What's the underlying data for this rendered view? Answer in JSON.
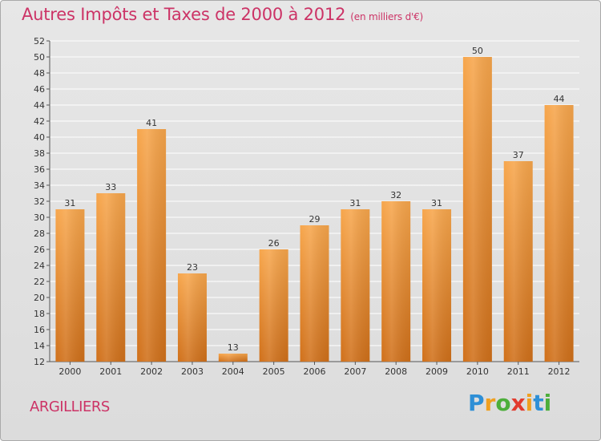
{
  "header": {
    "title": "Autres Impôts et Taxes de 2000 à 2012",
    "unit": "(en milliers d'€)"
  },
  "footer": {
    "commune": "ARGILLIERS",
    "logo_letters": [
      {
        "ch": "P",
        "color": "#2e8fd6"
      },
      {
        "ch": "r",
        "color": "#f0a020"
      },
      {
        "ch": "o",
        "color": "#4cae3a"
      },
      {
        "ch": "x",
        "color": "#e23b2e"
      },
      {
        "ch": "i",
        "color": "#f0a020"
      },
      {
        "ch": "t",
        "color": "#2e8fd6"
      },
      {
        "ch": "i",
        "color": "#4cae3a"
      }
    ]
  },
  "colors": {
    "bar_top": "#f7a64c",
    "bar_bottom": "#d0701a",
    "title": "#cc3366",
    "grid": "#ffffff"
  },
  "chart_data": {
    "type": "bar",
    "title": "Autres Impôts et Taxes de 2000 à 2012",
    "subtitle": "(en milliers d'€)",
    "categories": [
      "2000",
      "2001",
      "2002",
      "2003",
      "2004",
      "2005",
      "2006",
      "2007",
      "2008",
      "2009",
      "2010",
      "2011",
      "2012"
    ],
    "values": [
      31,
      33,
      41,
      23,
      13,
      26,
      29,
      31,
      32,
      31,
      50,
      37,
      44
    ],
    "ylim": [
      12,
      52
    ],
    "yticks": [
      12,
      14,
      16,
      18,
      20,
      22,
      24,
      26,
      28,
      30,
      32,
      34,
      36,
      38,
      40,
      42,
      44,
      46,
      48,
      50,
      52
    ],
    "grid": true,
    "xlabel": "",
    "ylabel": ""
  }
}
